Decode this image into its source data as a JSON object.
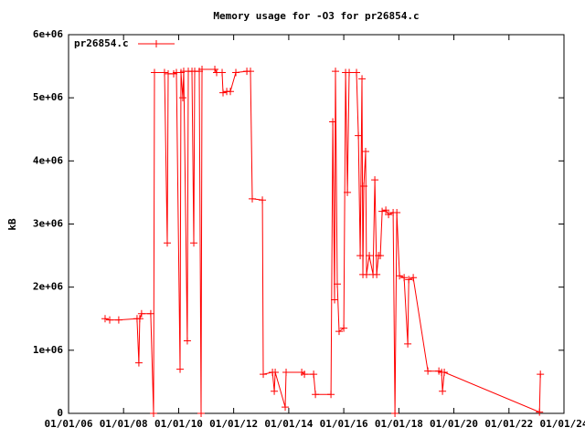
{
  "chart_data": {
    "type": "line",
    "title": "Memory usage for -O3 for pr26854.c",
    "y_label": "kB",
    "legend": "top-left",
    "xlim": [
      "2006-01-01",
      "2024-01-01"
    ],
    "xticks": [
      {
        "value": "2006-01-01",
        "label": "01/01/06"
      },
      {
        "value": "2008-01-01",
        "label": "01/01/08"
      },
      {
        "value": "2010-01-01",
        "label": "01/01/10"
      },
      {
        "value": "2012-01-01",
        "label": "01/01/12"
      },
      {
        "value": "2014-01-01",
        "label": "01/01/14"
      },
      {
        "value": "2016-01-01",
        "label": "01/01/16"
      },
      {
        "value": "2018-01-01",
        "label": "01/01/18"
      },
      {
        "value": "2020-01-01",
        "label": "01/01/20"
      },
      {
        "value": "2022-01-01",
        "label": "01/01/22"
      },
      {
        "value": "2024-01-01",
        "label": "01/01/24"
      }
    ],
    "ylim": [
      0,
      6000000
    ],
    "yticks": [
      0,
      {
        "value": 1000000,
        "label": "1e+06"
      },
      {
        "value": 2000000,
        "label": "2e+06"
      },
      {
        "value": 3000000,
        "label": "3e+06"
      },
      {
        "value": 4000000,
        "label": "4e+06"
      },
      {
        "value": 5000000,
        "label": "5e+06"
      },
      {
        "value": 6000000,
        "label": "6e+06"
      }
    ],
    "series": [
      {
        "name": "pr26854.c",
        "color": "#ff0000",
        "x": [
          "2007-05-01",
          "2007-07-01",
          "2007-10-29",
          "2008-06-28",
          "2008-07-22",
          "2008-08-03",
          "2008-08-27",
          "2008-12-27",
          "2009-02-02",
          "2009-02-14",
          "2009-06-27",
          "2009-08-03",
          "2009-08-15",
          "2009-10-27",
          "2009-12-02",
          "2010-01-20",
          "2010-02-01",
          "2010-02-25",
          "2010-03-09",
          "2010-04-26",
          "2010-05-09",
          "2010-06-27",
          "2010-07-21",
          "2010-08-02",
          "2010-10-02",
          "2010-10-26",
          "2010-11-07",
          "2011-04-26",
          "2011-05-20",
          "2011-08-01",
          "2011-08-13",
          "2011-10-01",
          "2011-11-18",
          "2012-01-30",
          "2012-06-24",
          "2012-08-11",
          "2012-09-04",
          "2013-01-16",
          "2013-01-28",
          "2013-05-30",
          "2013-06-23",
          "2013-07-05",
          "2013-11-15",
          "2013-11-27",
          "2014-06-22",
          "2014-07-28",
          "2014-11-27",
          "2014-12-21",
          "2015-07-15",
          "2015-08-08",
          "2015-09-01",
          "2015-09-13",
          "2015-10-07",
          "2015-10-31",
          "2016-01-01",
          "2016-01-25",
          "2016-02-18",
          "2016-03-13",
          "2016-06-18",
          "2016-07-13",
          "2016-08-06",
          "2016-08-30",
          "2016-09-11",
          "2016-09-23",
          "2016-10-17",
          "2016-10-29",
          "2016-12-05",
          "2017-01-23",
          "2017-02-16",
          "2017-03-13",
          "2017-04-06",
          "2017-04-30",
          "2017-05-24",
          "2017-07-12",
          "2017-08-17",
          "2017-10-17",
          "2017-11-10",
          "2017-12-05",
          "2018-01-10",
          "2018-03-12",
          "2018-04-29",
          "2018-05-12",
          "2018-07-11",
          "2019-01-21",
          "2019-06-16",
          "2019-07-22",
          "2019-08-03",
          "2019-08-27",
          "2023-02-10",
          "2023-02-22"
        ],
        "values": [
          1500000,
          1480000,
          1480000,
          1500000,
          800000,
          1500000,
          1580000,
          1580000,
          0,
          5400000,
          5400000,
          2700000,
          5380000,
          5380000,
          5400000,
          700000,
          5400000,
          5000000,
          5420000,
          1150000,
          5420000,
          5420000,
          2700000,
          5420000,
          5420000,
          0,
          5450000,
          5450000,
          5400000,
          5400000,
          5080000,
          5100000,
          5100000,
          5400000,
          5420000,
          5420000,
          3400000,
          3380000,
          620000,
          650000,
          350000,
          650000,
          100000,
          650000,
          650000,
          620000,
          620000,
          300000,
          300000,
          4620000,
          1800000,
          5420000,
          2050000,
          1300000,
          1350000,
          5400000,
          3500000,
          5400000,
          5400000,
          4400000,
          2500000,
          5300000,
          2200000,
          3600000,
          4150000,
          2200000,
          2500000,
          2200000,
          3700000,
          2200000,
          2500000,
          2500000,
          3200000,
          3220000,
          3150000,
          3180000,
          0,
          3180000,
          2180000,
          2150000,
          1100000,
          2120000,
          2150000,
          670000,
          670000,
          650000,
          350000,
          650000,
          20000,
          620000
        ]
      }
    ]
  }
}
